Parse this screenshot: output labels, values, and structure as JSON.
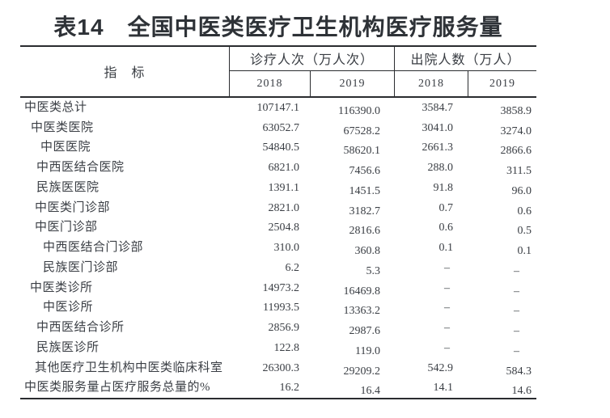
{
  "title": "表14　全国中医类医疗卫生机构医疗服务量",
  "header": {
    "indicator": "指　标",
    "group_visits": "诊疗人次（万人次）",
    "group_discharge": "出院人数（万人）",
    "years": [
      "2018",
      "2019",
      "2018",
      "2019"
    ]
  },
  "table": {
    "columns": [
      "visits-2018",
      "visits-2019",
      "discharge-2018",
      "discharge-2019"
    ],
    "rows": [
      {
        "label": "中医类总计",
        "indent": 5,
        "values": [
          "107147.1",
          "116390.0",
          "3584.7",
          "3858.9"
        ]
      },
      {
        "label": "中医类医院",
        "indent": 13,
        "values": [
          "63052.7",
          "67528.2",
          "3041.0",
          "3274.0"
        ]
      },
      {
        "label": "中医医院",
        "indent": 25,
        "values": [
          "54840.5",
          "58620.1",
          "2661.3",
          "2866.6"
        ]
      },
      {
        "label": "中西医结合医院",
        "indent": 20,
        "values": [
          "6821.0",
          "7456.6",
          "288.0",
          "311.5"
        ]
      },
      {
        "label": "民族医医院",
        "indent": 20,
        "values": [
          "1391.1",
          "1451.5",
          "91.8",
          "96.0"
        ]
      },
      {
        "label": "中医类门诊部",
        "indent": 18,
        "values": [
          "2821.0",
          "3182.7",
          "0.7",
          "0.6"
        ]
      },
      {
        "label": "中医门诊部",
        "indent": 18,
        "values": [
          "2504.8",
          "2816.6",
          "0.6",
          "0.5"
        ]
      },
      {
        "label": "中西医结合门诊部",
        "indent": 28,
        "values": [
          "310.0",
          "360.8",
          "0.1",
          "0.1"
        ]
      },
      {
        "label": "民族医门诊部",
        "indent": 28,
        "values": [
          "6.2",
          "5.3",
          "–",
          "–"
        ]
      },
      {
        "label": "中医类诊所",
        "indent": 12,
        "values": [
          "14973.2",
          "16469.8",
          "–",
          "–"
        ]
      },
      {
        "label": "中医诊所",
        "indent": 28,
        "values": [
          "11993.5",
          "13363.2",
          "–",
          "–"
        ]
      },
      {
        "label": "中西医结合诊所",
        "indent": 20,
        "values": [
          "2856.9",
          "2987.6",
          "–",
          "–"
        ]
      },
      {
        "label": "民族医诊所",
        "indent": 20,
        "values": [
          "122.8",
          "119.0",
          "–",
          "–"
        ]
      },
      {
        "label": "其他医疗卫生机构中医类临床科室",
        "indent": 18,
        "values": [
          "26300.3",
          "29209.2",
          "542.9",
          "584.3"
        ]
      },
      {
        "label": "中医类服务量占医疗服务总量的%",
        "indent": 5,
        "values": [
          "16.2",
          "16.4",
          "14.1",
          "14.6"
        ]
      }
    ]
  },
  "colors": {
    "text": "#3a3e44",
    "line": "#2a2c2f",
    "title": "#2e3237",
    "background": "#ffffff"
  }
}
